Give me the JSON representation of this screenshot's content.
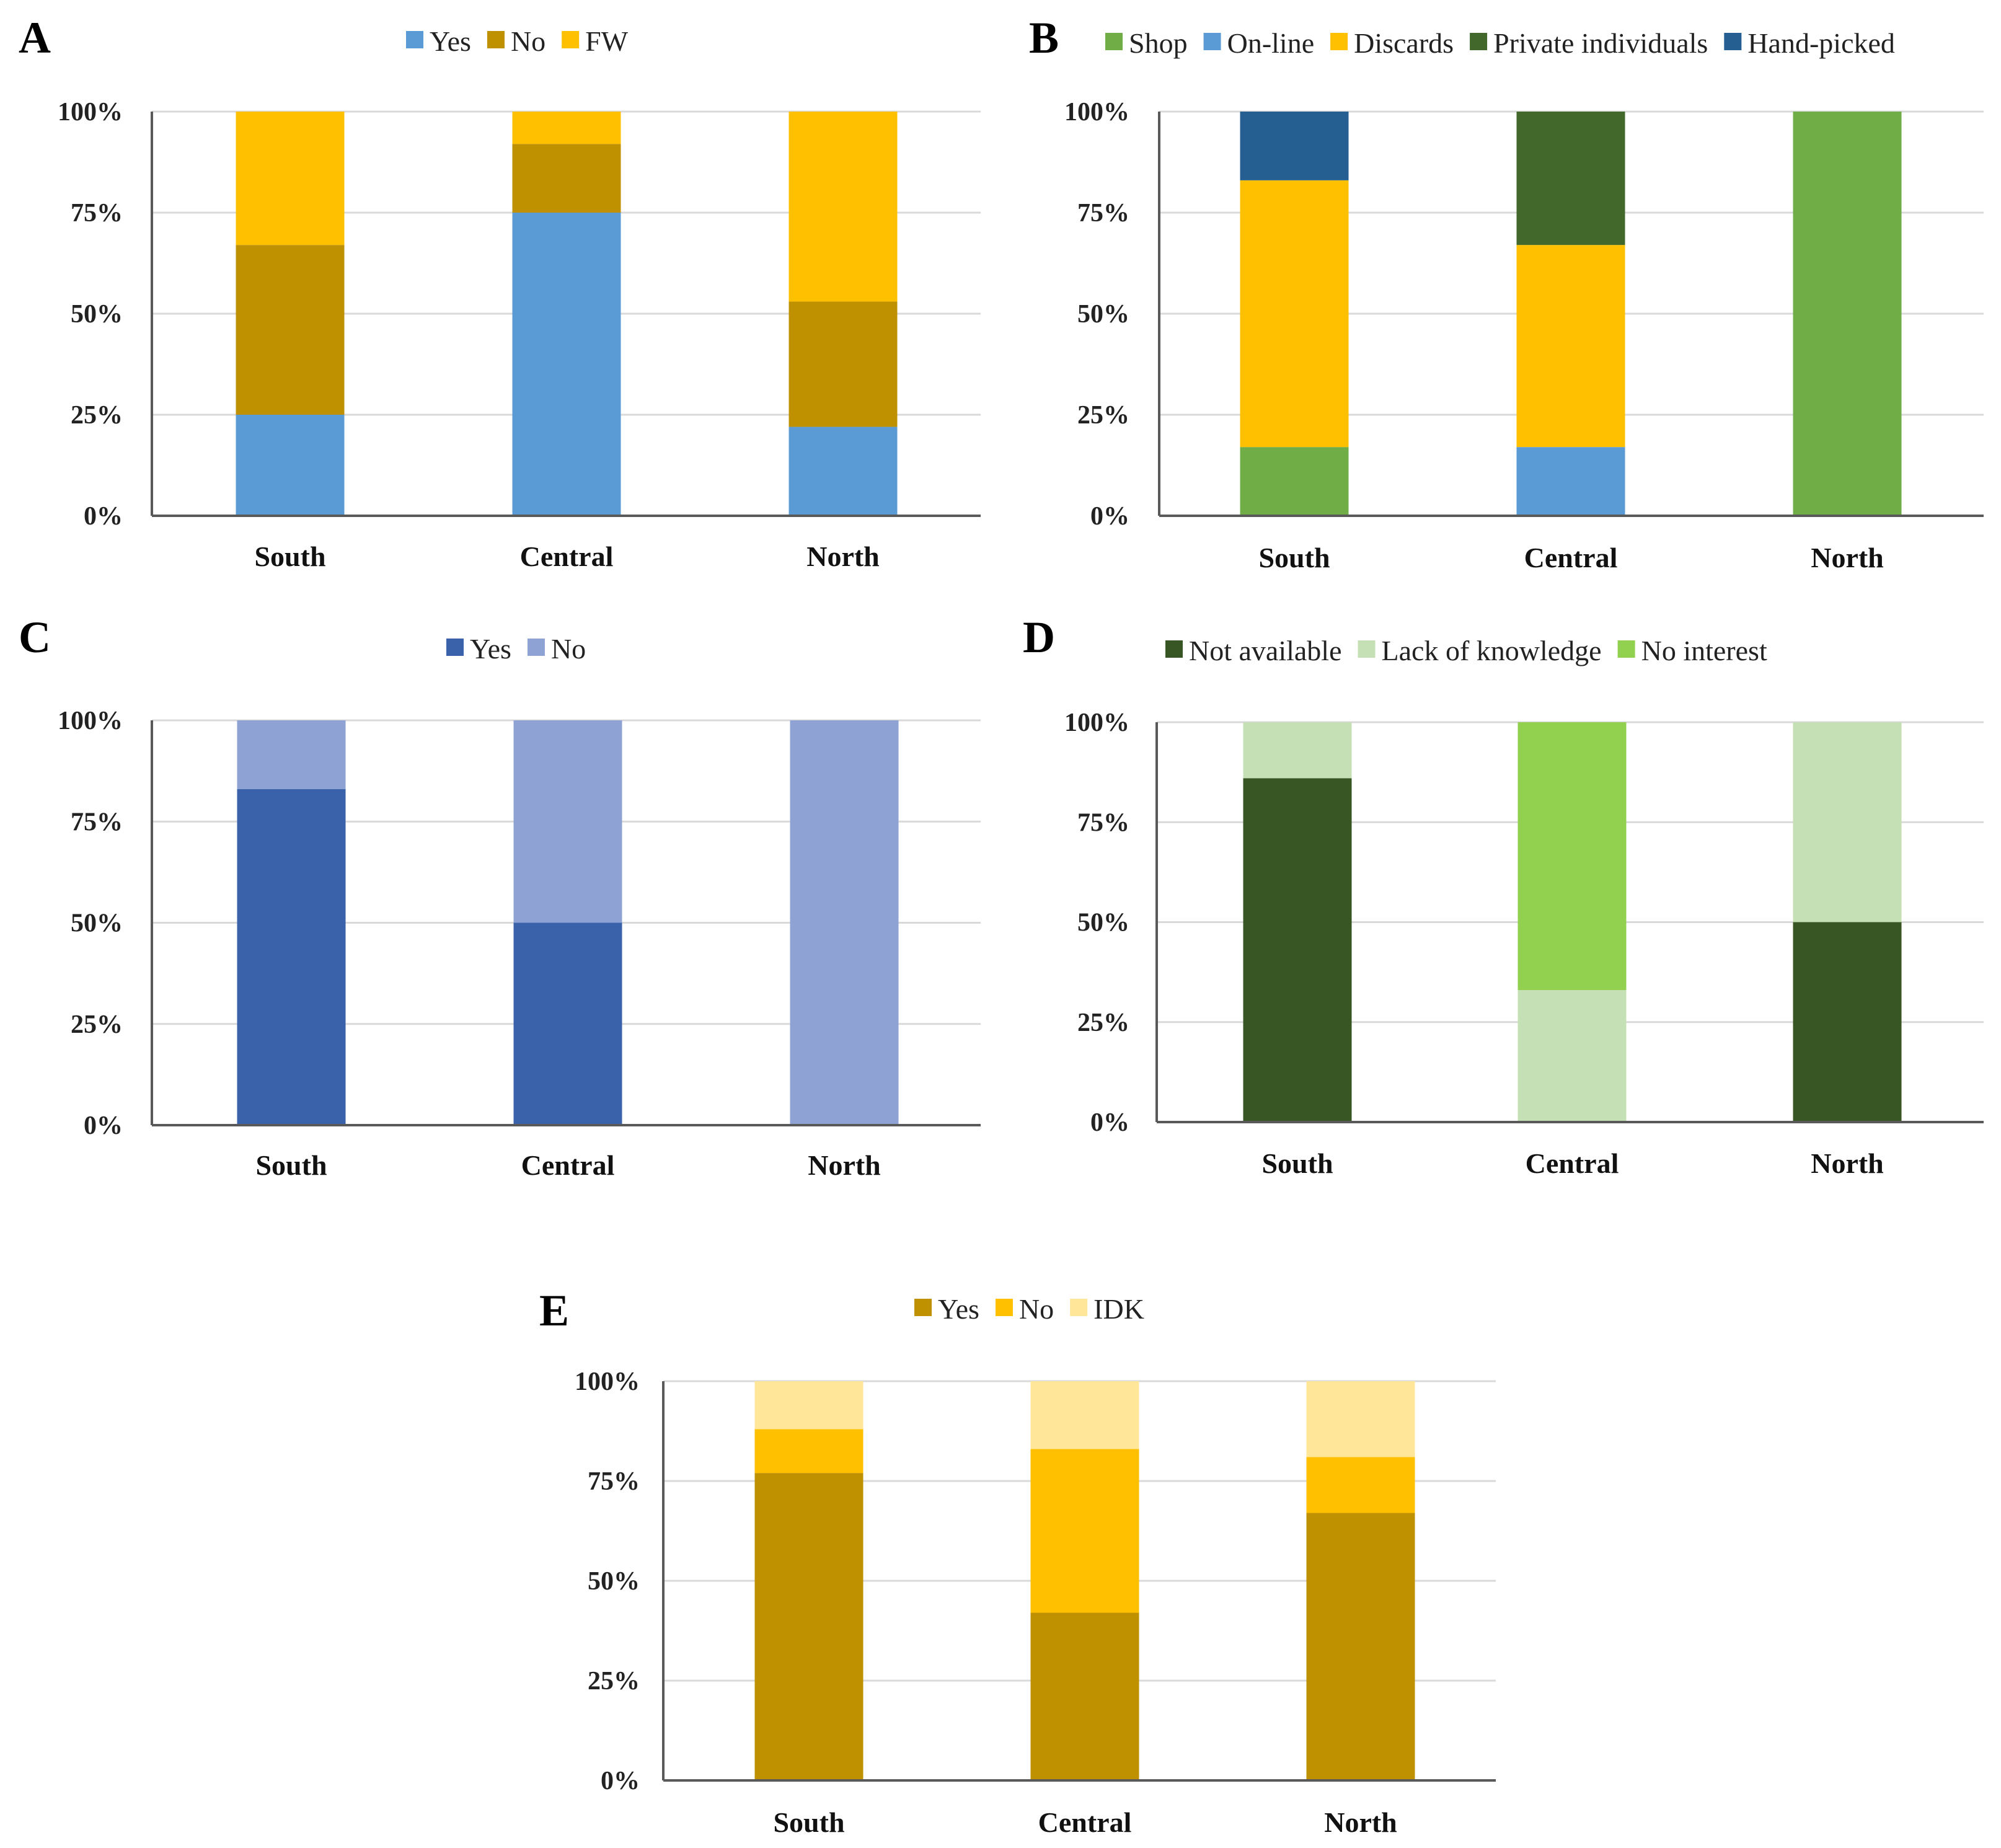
{
  "figure": {
    "chart_data": [
      {
        "panel": "A",
        "type": "bar",
        "stacked": true,
        "categories": [
          "South",
          "Central",
          "North"
        ],
        "yticks": [
          "0%",
          "25%",
          "50%",
          "75%",
          "100%"
        ],
        "ylim": [
          0,
          100
        ],
        "grid": true,
        "legend_position": "top-center",
        "series": [
          {
            "name": "Yes",
            "color": "#5b9bd5",
            "values": [
              25,
              75,
              22
            ]
          },
          {
            "name": "No",
            "color": "#bf9000",
            "values": [
              42,
              17,
              31
            ]
          },
          {
            "name": "FW",
            "color": "#ffc000",
            "values": [
              33,
              8,
              47
            ]
          }
        ]
      },
      {
        "panel": "B",
        "type": "bar",
        "stacked": true,
        "categories": [
          "South",
          "Central",
          "North"
        ],
        "yticks": [
          "0%",
          "25%",
          "50%",
          "75%",
          "100%"
        ],
        "ylim": [
          0,
          100
        ],
        "grid": true,
        "legend_position": "top-center",
        "series": [
          {
            "name": "Shop",
            "color": "#70ad47",
            "values": [
              17,
              0,
              100
            ]
          },
          {
            "name": "On-line",
            "color": "#5b9bd5",
            "values": [
              0,
              17,
              0
            ]
          },
          {
            "name": "Discards",
            "color": "#ffc000",
            "values": [
              66,
              50,
              0
            ]
          },
          {
            "name": "Private individuals",
            "color": "#43682b",
            "values": [
              0,
              33,
              0
            ]
          },
          {
            "name": "Hand-picked",
            "color": "#255e91",
            "values": [
              17,
              0,
              0
            ]
          }
        ]
      },
      {
        "panel": "C",
        "type": "bar",
        "stacked": true,
        "categories": [
          "South",
          "Central",
          "North"
        ],
        "yticks": [
          "0%",
          "25%",
          "50%",
          "75%",
          "100%"
        ],
        "ylim": [
          0,
          100
        ],
        "grid": true,
        "legend_position": "top-center",
        "series": [
          {
            "name": "Yes",
            "color": "#3a62ab",
            "values": [
              83,
              50,
              0
            ]
          },
          {
            "name": "No",
            "color": "#8fa2d4",
            "values": [
              17,
              50,
              100
            ]
          }
        ]
      },
      {
        "panel": "D",
        "type": "bar",
        "stacked": true,
        "categories": [
          "South",
          "Central",
          "North"
        ],
        "yticks": [
          "0%",
          "25%",
          "50%",
          "75%",
          "100%"
        ],
        "ylim": [
          0,
          100
        ],
        "grid": true,
        "legend_position": "top-center",
        "series": [
          {
            "name": "Not available",
            "color": "#375623",
            "values": [
              86,
              0,
              50
            ]
          },
          {
            "name": "Lack of knowledge",
            "color": "#c5e0b4",
            "values": [
              14,
              33,
              50
            ]
          },
          {
            "name": "No interest",
            "color": "#92d050",
            "values": [
              0,
              67,
              0
            ]
          }
        ]
      },
      {
        "panel": "E",
        "type": "bar",
        "stacked": true,
        "categories": [
          "South",
          "Central",
          "North"
        ],
        "yticks": [
          "0%",
          "25%",
          "50%",
          "75%",
          "100%"
        ],
        "ylim": [
          0,
          100
        ],
        "grid": true,
        "legend_position": "top-center",
        "series": [
          {
            "name": "Yes",
            "color": "#bf9000",
            "values": [
              77,
              42,
              67
            ]
          },
          {
            "name": "No",
            "color": "#ffc000",
            "values": [
              11,
              41,
              14
            ]
          },
          {
            "name": "IDK",
            "color": "#ffe699",
            "values": [
              12,
              17,
              19
            ]
          }
        ]
      }
    ]
  }
}
